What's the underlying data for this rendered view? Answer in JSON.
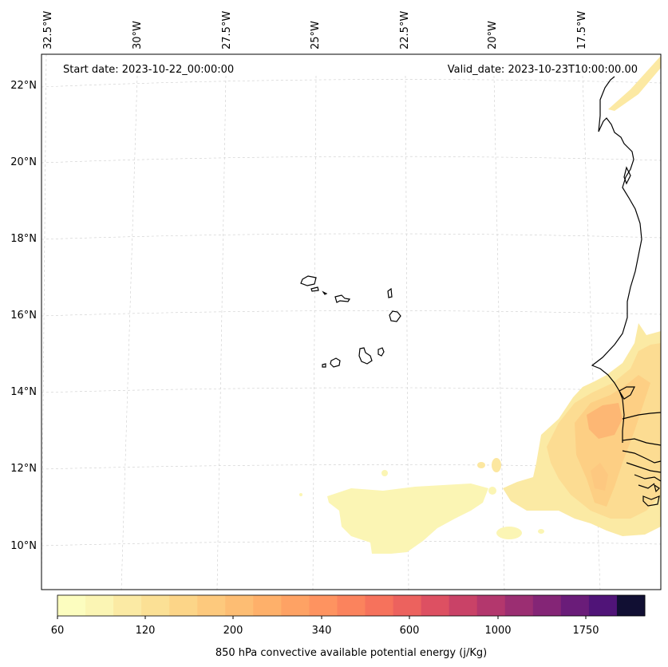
{
  "header": {
    "start_date": "Start date: 2023-10-22_00:00:00",
    "valid_date": "Valid_date: 2023-10-23T10:00:00.00"
  },
  "map": {
    "lon_labels": [
      "32.5°W",
      "30°W",
      "27.5°W",
      "25°W",
      "22.5°W",
      "20°W",
      "17.5°W"
    ],
    "lat_labels": [
      "22°N",
      "20°N",
      "18°N",
      "16°N",
      "14°N",
      "12°N",
      "10°N"
    ]
  },
  "colorbar": {
    "title": "850 hPa convective available potential energy (j/Kg)",
    "tick_labels": [
      "60",
      "120",
      "200",
      "340",
      "600",
      "1000",
      "1750"
    ],
    "colors": [
      "#fcfdbf",
      "#fbf5b4",
      "#fbeaa4",
      "#fbe095",
      "#fcd588",
      "#fdc97d",
      "#fdbd73",
      "#feb06a",
      "#fea264",
      "#fe9360",
      "#fb835d",
      "#f6725c",
      "#ec625e",
      "#dd5062",
      "#c94267",
      "#b3376d",
      "#9b2e72",
      "#842576",
      "#6a1c79",
      "#501478",
      "#110f33"
    ]
  }
}
